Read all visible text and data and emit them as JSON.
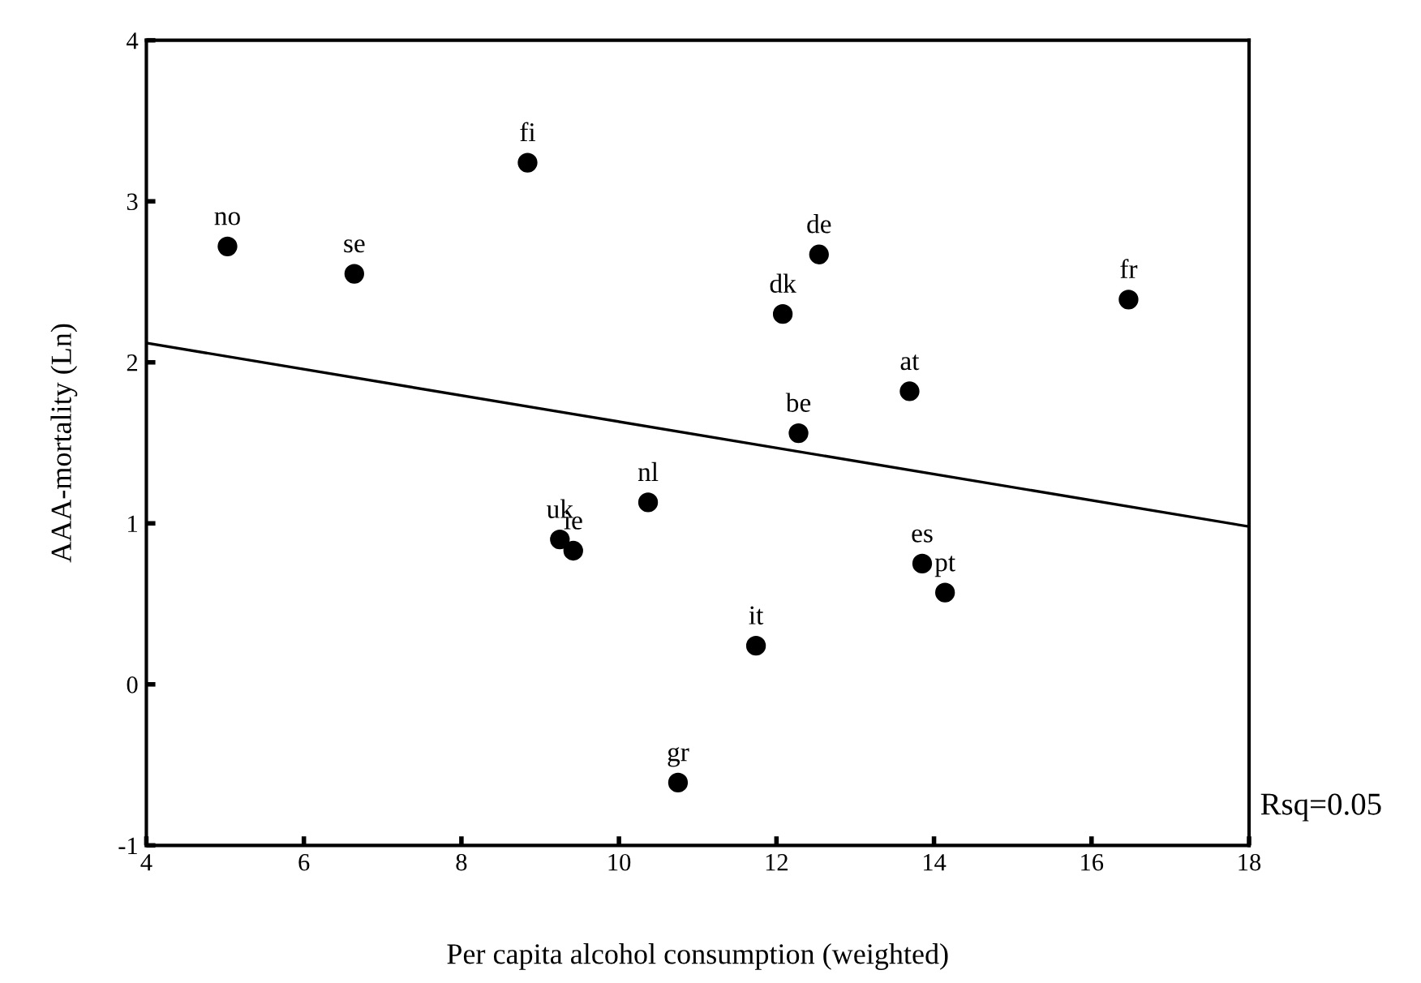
{
  "chart_data": {
    "type": "scatter",
    "xlabel": "Per capita alcohol consumption (weighted)",
    "ylabel": "AAA-mortality (Ln)",
    "xlim": [
      4,
      18
    ],
    "ylim": [
      -1,
      4
    ],
    "xticks": [
      4,
      6,
      8,
      10,
      12,
      14,
      16,
      18
    ],
    "yticks": [
      -1,
      0,
      1,
      2,
      3,
      4
    ],
    "grid": false,
    "series": [
      {
        "color": "#000000",
        "marker": "circle",
        "x": [
          5.03,
          6.64,
          8.84,
          12.54,
          12.08,
          16.47,
          13.69,
          12.28,
          10.37,
          9.25,
          9.42,
          10.75,
          13.85,
          14.14,
          11.74
        ],
        "values": [
          2.72,
          2.55,
          3.24,
          2.67,
          2.3,
          2.39,
          1.82,
          1.56,
          1.13,
          0.9,
          0.83,
          -0.61,
          0.75,
          0.57,
          0.24
        ]
      },
      {
        "type": "line",
        "color": "#000000",
        "line_style": "solid",
        "x": [
          4,
          18
        ],
        "values": [
          2.12,
          0.98
        ]
      }
    ],
    "annotations": [
      {
        "text": "no",
        "x": 5.03,
        "y": 2.72
      },
      {
        "text": "se",
        "x": 6.64,
        "y": 2.55
      },
      {
        "text": "fi",
        "x": 8.84,
        "y": 3.24
      },
      {
        "text": "de",
        "x": 12.54,
        "y": 2.67
      },
      {
        "text": "dk",
        "x": 12.08,
        "y": 2.3
      },
      {
        "text": "fr",
        "x": 16.47,
        "y": 2.39
      },
      {
        "text": "at",
        "x": 13.69,
        "y": 1.82
      },
      {
        "text": "be",
        "x": 12.28,
        "y": 1.56
      },
      {
        "text": "nl",
        "x": 10.37,
        "y": 1.13
      },
      {
        "text": "uk",
        "x": 9.25,
        "y": 0.9
      },
      {
        "text": "ie",
        "x": 9.42,
        "y": 0.83
      },
      {
        "text": "gr",
        "x": 10.75,
        "y": -0.61
      },
      {
        "text": "es",
        "x": 13.85,
        "y": 0.75
      },
      {
        "text": "pt",
        "x": 14.14,
        "y": 0.57
      },
      {
        "text": "it",
        "x": 11.74,
        "y": 0.24
      },
      "Rsq=0.05"
    ]
  }
}
